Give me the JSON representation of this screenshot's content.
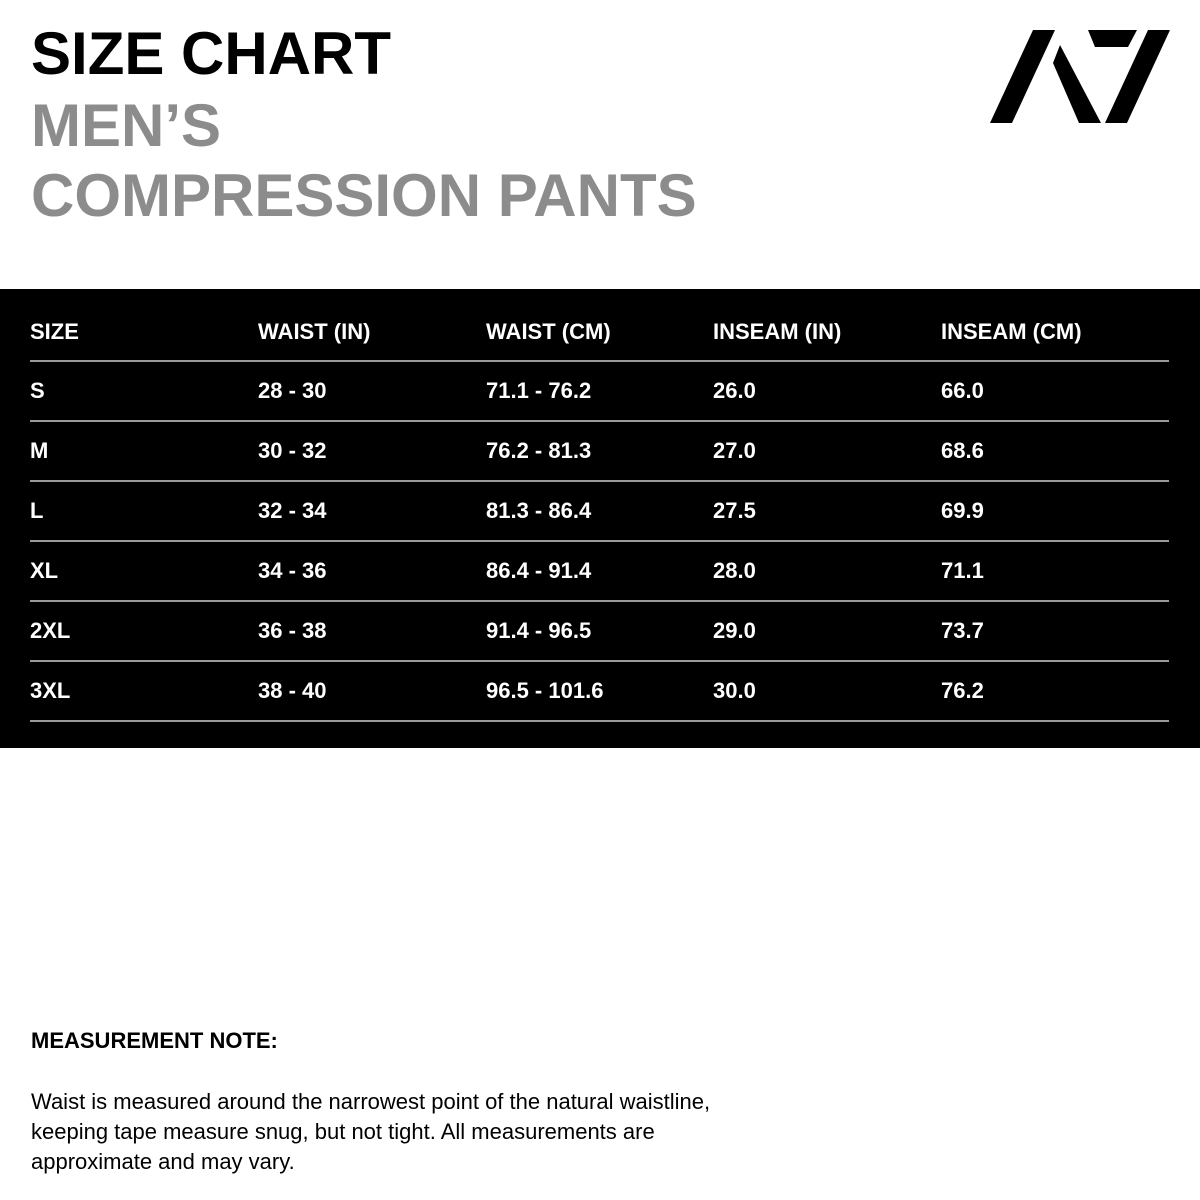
{
  "title": {
    "line1": "SIZE CHART",
    "line2": "MEN’S",
    "line3": "COMPRESSION PANTS"
  },
  "logo_text": "A7",
  "table": {
    "headers": [
      "SIZE",
      "WAIST (IN)",
      "WAIST (CM)",
      "INSEAM (IN)",
      "INSEAM (CM)"
    ],
    "rows": [
      [
        "S",
        "28 - 30",
        "71.1 - 76.2",
        "26.0",
        "66.0"
      ],
      [
        "M",
        "30 - 32",
        "76.2 - 81.3",
        "27.0",
        "68.6"
      ],
      [
        "L",
        "32 - 34",
        "81.3 - 86.4",
        "27.5",
        "69.9"
      ],
      [
        "XL",
        "34 - 36",
        "86.4 - 91.4",
        "28.0",
        "71.1"
      ],
      [
        "2XL",
        "36 - 38",
        "91.4 - 96.5",
        "29.0",
        "73.7"
      ],
      [
        "3XL",
        "38 - 40",
        "96.5 - 101.6",
        "30.0",
        "76.2"
      ]
    ]
  },
  "note": {
    "heading": "MEASUREMENT NOTE:",
    "text": "Waist is measured around the narrowest point of the natural waistline, keeping tape measure snug, but not tight. All measurements are approximate and may vary."
  },
  "colors": {
    "title_gray": "#8c8c8c",
    "band": "#000000",
    "divider": "#9a9a9a"
  }
}
